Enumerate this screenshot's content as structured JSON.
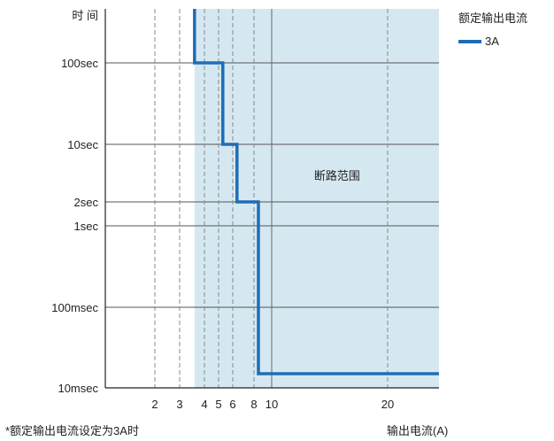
{
  "chart_data": {
    "type": "line",
    "title": "",
    "xlabel": "输出电流(A)",
    "ylabel": "时 间",
    "x_ticks": [
      2,
      3,
      4,
      5,
      6,
      8,
      10,
      20
    ],
    "x_tick_labels": [
      "2",
      "3",
      "4",
      "5",
      "6",
      "8",
      "10",
      "20"
    ],
    "y_ticks": [
      "100sec",
      "10sec",
      "2sec",
      "1sec",
      "100msec",
      "10msec"
    ],
    "y_tick_values": [
      100,
      10,
      2,
      1,
      0.1,
      0.01
    ],
    "xlim": [
      0,
      28.5
    ],
    "ylog_range": [
      0.01,
      1000
    ],
    "legend": {
      "title": "额定输出电流",
      "placement": "top-right"
    },
    "series": [
      {
        "name": "3A",
        "color": "#1f6db5",
        "points": [
          [
            3.6,
            1000
          ],
          [
            3.6,
            100
          ],
          [
            5.3,
            100
          ],
          [
            5.3,
            10
          ],
          [
            6.4,
            10
          ],
          [
            6.4,
            2
          ],
          [
            8.5,
            2
          ],
          [
            8.5,
            0.015
          ],
          [
            28.5,
            0.015
          ]
        ]
      }
    ],
    "region": {
      "label": "断路范围",
      "x_start": 3.6,
      "color": "#d5e8f2"
    },
    "grid": true
  },
  "footnote": "*额定输出电流设定为3A时"
}
